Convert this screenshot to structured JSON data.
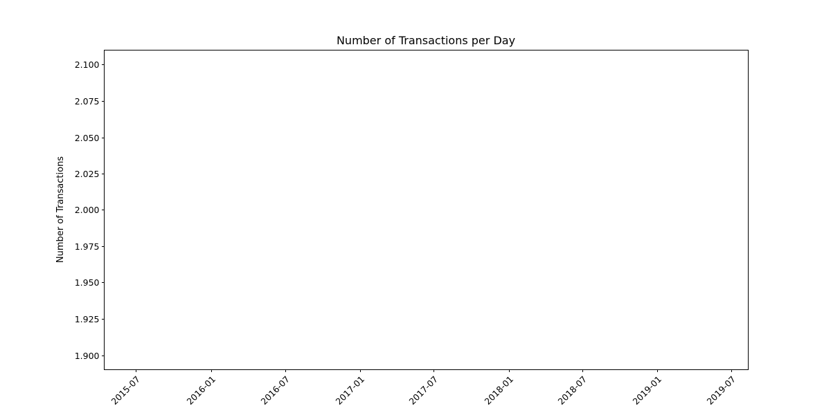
{
  "chart_data": {
    "type": "line",
    "title": "Number of Transactions per Day",
    "xlabel": "",
    "ylabel": "Number of Transactions",
    "x_ticks": [
      "2015-07",
      "2016-01",
      "2016-07",
      "2017-01",
      "2017-07",
      "2018-01",
      "2018-07",
      "2019-01",
      "2019-07"
    ],
    "y_ticks": [
      "1.900",
      "1.925",
      "1.950",
      "1.975",
      "2.000",
      "2.025",
      "2.050",
      "2.075",
      "2.100"
    ],
    "xlim": [
      "2015-04-14",
      "2019-08-12"
    ],
    "ylim": [
      1.89,
      2.11
    ],
    "series": [
      {
        "values": []
      }
    ],
    "grid": false,
    "legend": "none",
    "colors": {
      "axis": "#000000",
      "background": "#ffffff"
    }
  }
}
